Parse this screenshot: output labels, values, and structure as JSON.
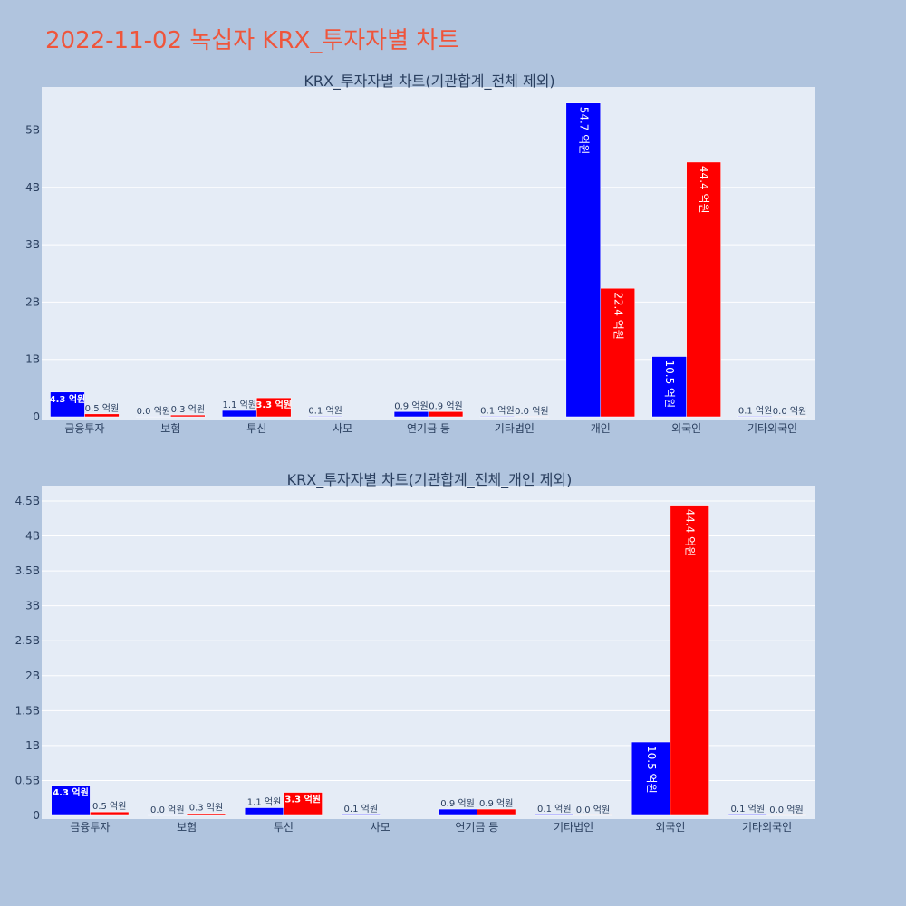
{
  "page_title": "2022-11-02 녹십자 KRX_투자자별 차트",
  "colors": {
    "background": "#b0c4de",
    "plot_bg": "#e5ecf6",
    "buy": "#0000ff",
    "sell": "#ff0000",
    "title": "#ef553b",
    "text": "#2a3f5f"
  },
  "chart_data": [
    {
      "type": "bar",
      "title": "KRX_투자자별 차트(기관합계_전체 제외)",
      "categories": [
        "금융투자",
        "보험",
        "투신",
        "사모",
        "연기금 등",
        "기타법인",
        "개인",
        "외국인",
        "기타외국인"
      ],
      "series": [
        {
          "color": "#0000ff",
          "values": [
            430000000,
            2000000,
            110000000,
            10000000,
            90000000,
            10000000,
            5470000000,
            1050000000,
            10000000
          ],
          "labels": [
            "4.3 억원",
            "0.0 억원",
            "1.1 억원",
            "0.1 억원",
            "0.9 억원",
            "0.1 억원",
            "54.7 억원",
            "10.5 억원",
            "0.1 억원"
          ]
        },
        {
          "color": "#ff0000",
          "values": [
            50000000,
            30000000,
            330000000,
            0,
            90000000,
            2000000,
            2240000000,
            4440000000,
            2000000
          ],
          "labels": [
            "0.5 억원",
            "0.3 억원",
            "3.3 억원",
            "",
            "0.9 억원",
            "0.0 억원",
            "22.4 억원",
            "44.4 억원",
            "0.0 억원"
          ]
        }
      ],
      "ylim": [
        0,
        5750000000
      ],
      "yticks": [
        0,
        1000000000,
        2000000000,
        3000000000,
        4000000000,
        5000000000
      ],
      "ytick_labels": [
        "0",
        "1B",
        "2B",
        "3B",
        "4B",
        "5B"
      ],
      "grid": true
    },
    {
      "type": "bar",
      "title": "KRX_투자자별 차트(기관합계_전체_개인 제외)",
      "categories": [
        "금융투자",
        "보험",
        "투신",
        "사모",
        "연기금 등",
        "기타법인",
        "외국인",
        "기타외국인"
      ],
      "series": [
        {
          "color": "#0000ff",
          "values": [
            430000000,
            2000000,
            110000000,
            10000000,
            90000000,
            10000000,
            1050000000,
            10000000
          ],
          "labels": [
            "4.3 억원",
            "0.0 억원",
            "1.1 억원",
            "0.1 억원",
            "0.9 억원",
            "0.1 억원",
            "10.5 억원",
            "0.1 억원"
          ]
        },
        {
          "color": "#ff0000",
          "values": [
            50000000,
            30000000,
            330000000,
            0,
            90000000,
            2000000,
            4440000000,
            2000000
          ],
          "labels": [
            "0.5 억원",
            "0.3 억원",
            "3.3 억원",
            "",
            "0.9 억원",
            "0.0 억원",
            "44.4 억원",
            "0.0 억원"
          ]
        }
      ],
      "ylim": [
        0,
        4720000000
      ],
      "yticks": [
        0,
        500000000,
        1000000000,
        1500000000,
        2000000000,
        2500000000,
        3000000000,
        3500000000,
        4000000000,
        4500000000
      ],
      "ytick_labels": [
        "0",
        "0.5B",
        "1B",
        "1.5B",
        "2B",
        "2.5B",
        "3B",
        "3.5B",
        "4B",
        "4.5B"
      ],
      "grid": true
    }
  ]
}
